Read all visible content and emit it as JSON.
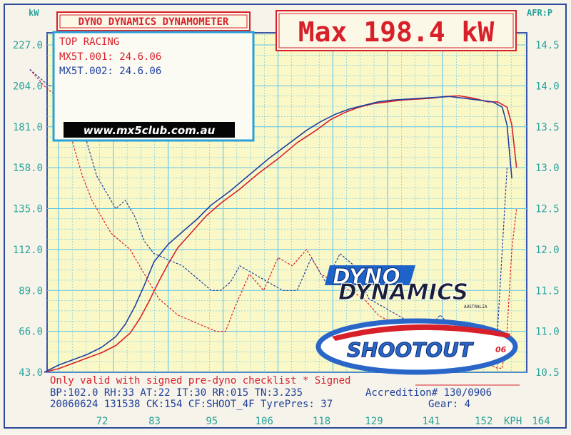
{
  "header": {
    "title": "DYNO DYNAMICS DYNAMOMETER",
    "max_label": "Max 198.4 kW"
  },
  "legend": {
    "heading": "TOP RACING",
    "entries": [
      {
        "label": "MX5T.001: 24.6.06",
        "color": "#d8202a"
      },
      {
        "label": "MX5T.002: 24.6.06",
        "color": "#2040a0"
      }
    ],
    "url": "www.mx5club.com.au"
  },
  "logos": {
    "dyno_top": "DYNO",
    "dyno_bottom": "DYNAMICS",
    "australia": "AUSTRALIA",
    "shootout": "SHOOTOUT",
    "shootout_year": "06"
  },
  "footer": {
    "line1_red": "Only valid with signed pre-dyno checklist *  Signed",
    "line2_left": "BP:102.0 RH:33 AT:22 IT:30  RR:015 TN:3.235",
    "line2_right": "Accredition# 130/0906",
    "line3_left": "20060624 131538 CK:154 CF:SHOOT_4F TyrePres: 37",
    "line3_right": "Gear: 4"
  },
  "colors": {
    "run1": "#d8202a",
    "run2": "#2040a0",
    "grid": "#5ec4e8",
    "background": "#fbf8c8",
    "axis_text": "#2aa39a"
  },
  "chart_data": {
    "type": "line",
    "title": "DYNO DYNAMICS DYNAMOMETER",
    "xlabel": "KPH",
    "ylabel": "kW",
    "y2label": "AFR:P",
    "xlim": [
      66,
      170
    ],
    "ylim": [
      43,
      227
    ],
    "y2lim": [
      10.5,
      14.5
    ],
    "x_ticks": [
      72,
      83,
      95,
      106,
      118,
      129,
      141,
      152,
      164
    ],
    "y_ticks": [
      43.0,
      66.0,
      89.0,
      112.0,
      135.0,
      158.0,
      181.0,
      204.0,
      227.0
    ],
    "y2_ticks": [
      10.5,
      11.0,
      11.5,
      12.0,
      12.5,
      13.0,
      13.5,
      14.0,
      14.5
    ],
    "grid": true,
    "series": [
      {
        "name": "MX5T.001: 24.6.06",
        "kind": "power",
        "axis": "left",
        "x": [
          69,
          72,
          75,
          78,
          81,
          84,
          87,
          89,
          91,
          93,
          95,
          97,
          100,
          103,
          106,
          110,
          114,
          118,
          122,
          126,
          129,
          132,
          135,
          138,
          141,
          144,
          147,
          150,
          153,
          156,
          159,
          162,
          164,
          166,
          167,
          168
        ],
        "y": [
          43,
          45,
          48,
          51,
          54,
          58,
          65,
          73,
          83,
          94,
          104,
          113,
          122,
          131,
          138,
          146,
          155,
          163,
          172,
          179,
          185,
          189,
          192,
          194,
          195,
          196,
          196.5,
          197,
          198,
          198.4,
          197,
          195,
          195,
          192,
          182,
          158
        ]
      },
      {
        "name": "MX5T.002: 24.6.06",
        "kind": "power",
        "axis": "left",
        "x": [
          69,
          72,
          75,
          78,
          81,
          84,
          86,
          88,
          90,
          92,
          95,
          98,
          101,
          104,
          108,
          112,
          116,
          120,
          124,
          127,
          130,
          133,
          136,
          139,
          142,
          145,
          148,
          151,
          154,
          157,
          160,
          163,
          165,
          166,
          167
        ],
        "y": [
          43,
          47,
          50,
          53,
          57,
          63,
          70,
          80,
          92,
          105,
          115,
          122,
          129,
          137,
          145,
          154,
          163,
          171,
          179,
          184,
          188,
          191,
          193,
          195,
          196,
          196.5,
          197,
          197.5,
          198,
          197,
          196,
          195,
          192,
          182,
          152
        ]
      },
      {
        "name": "MX5T.001: 24.6.06",
        "kind": "afr",
        "axis": "right",
        "x": [
          66,
          69,
          71,
          73,
          75,
          77,
          79,
          81,
          83,
          85,
          87,
          89,
          91,
          93,
          95,
          97,
          99,
          101,
          103,
          105,
          107,
          109,
          112,
          115,
          118,
          121,
          124,
          127,
          130,
          133,
          136,
          139,
          142,
          145,
          148,
          151,
          154,
          157,
          160,
          162,
          164,
          165,
          166,
          167,
          168
        ],
        "y": [
          14.2,
          14.0,
          13.9,
          13.6,
          13.3,
          12.9,
          12.6,
          12.4,
          12.2,
          12.1,
          12.0,
          11.8,
          11.6,
          11.4,
          11.3,
          11.2,
          11.15,
          11.1,
          11.05,
          11.0,
          11.0,
          11.3,
          11.7,
          11.5,
          11.9,
          11.8,
          12.0,
          11.7,
          11.6,
          11.5,
          11.4,
          11.2,
          11.1,
          11.0,
          10.9,
          10.8,
          10.7,
          10.65,
          10.6,
          10.6,
          10.55,
          10.55,
          11.0,
          12.0,
          12.5
        ]
      },
      {
        "name": "MX5T.002: 24.6.06",
        "kind": "afr",
        "axis": "right",
        "x": [
          66,
          68,
          70,
          72,
          74,
          76,
          78,
          80,
          82,
          84,
          86,
          88,
          90,
          92,
          94,
          96,
          98,
          100,
          102,
          104,
          106,
          108,
          110,
          113,
          116,
          119,
          122,
          125,
          128,
          131,
          134,
          137,
          140,
          143,
          146,
          149,
          152,
          155,
          158,
          161,
          163,
          164,
          165,
          166
        ],
        "y": [
          14.2,
          14.1,
          14.0,
          14.0,
          14.0,
          13.8,
          13.3,
          12.9,
          12.7,
          12.5,
          12.6,
          12.4,
          12.1,
          11.95,
          11.9,
          11.85,
          11.8,
          11.7,
          11.6,
          11.5,
          11.5,
          11.6,
          11.8,
          11.7,
          11.6,
          11.5,
          11.5,
          11.9,
          11.6,
          11.95,
          11.8,
          11.4,
          11.3,
          11.2,
          11.1,
          11.0,
          11.2,
          11.0,
          10.9,
          10.8,
          10.8,
          11.0,
          12.0,
          13.0
        ]
      }
    ]
  }
}
